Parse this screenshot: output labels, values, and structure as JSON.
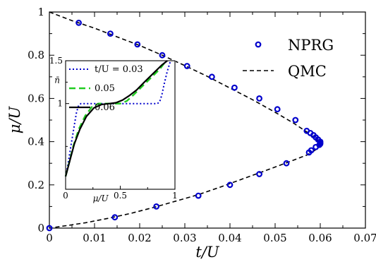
{
  "chart_data": [
    {
      "type": "scatter",
      "xlabel": "t/U",
      "ylabel": "μ/U",
      "xlim": [
        0,
        0.07
      ],
      "ylim": [
        0,
        1
      ],
      "xticks": [
        "0",
        "0.01",
        "0.02",
        "0.03",
        "0.04",
        "0.05",
        "0.06",
        "0.07"
      ],
      "yticks": [
        "0",
        "0.2",
        "0.4",
        "0.6",
        "0.8",
        "1"
      ],
      "legend_position": "top-right",
      "series": [
        {
          "name": "NPRG",
          "kind": "markers",
          "color": "#0000cc",
          "points": [
            [
              0.0,
              0.0
            ],
            [
              0.0065,
              0.95
            ],
            [
              0.0135,
              0.9
            ],
            [
              0.0195,
              0.85
            ],
            [
              0.025,
              0.8
            ],
            [
              0.0305,
              0.75
            ],
            [
              0.036,
              0.7
            ],
            [
              0.041,
              0.65
            ],
            [
              0.0465,
              0.6
            ],
            [
              0.0505,
              0.55
            ],
            [
              0.0545,
              0.5
            ],
            [
              0.057,
              0.45
            ],
            [
              0.0578,
              0.44
            ],
            [
              0.0585,
              0.43
            ],
            [
              0.059,
              0.42
            ],
            [
              0.0595,
              0.41
            ],
            [
              0.06,
              0.4
            ],
            [
              0.06,
              0.395
            ],
            [
              0.06,
              0.39
            ],
            [
              0.0598,
              0.385
            ],
            [
              0.059,
              0.375
            ],
            [
              0.058,
              0.36
            ],
            [
              0.0575,
              0.35
            ],
            [
              0.0525,
              0.3
            ],
            [
              0.0465,
              0.25
            ],
            [
              0.04,
              0.2
            ],
            [
              0.033,
              0.15
            ],
            [
              0.0237,
              0.1
            ],
            [
              0.0145,
              0.05
            ]
          ]
        },
        {
          "name": "QMC",
          "kind": "dashed",
          "color": "#000000",
          "points": [
            [
              0.0,
              1.0
            ],
            [
              0.005,
              0.96
            ],
            [
              0.01,
              0.925
            ],
            [
              0.015,
              0.885
            ],
            [
              0.02,
              0.845
            ],
            [
              0.025,
              0.8
            ],
            [
              0.03,
              0.752
            ],
            [
              0.035,
              0.702
            ],
            [
              0.04,
              0.648
            ],
            [
              0.045,
              0.594
            ],
            [
              0.05,
              0.536
            ],
            [
              0.054,
              0.487
            ],
            [
              0.057,
              0.445
            ],
            [
              0.059,
              0.413
            ],
            [
              0.0598,
              0.395
            ],
            [
              0.0599,
              0.382
            ],
            [
              0.059,
              0.362
            ],
            [
              0.057,
              0.338
            ],
            [
              0.053,
              0.306
            ],
            [
              0.048,
              0.267
            ],
            [
              0.043,
              0.229
            ],
            [
              0.038,
              0.191
            ],
            [
              0.033,
              0.155
            ],
            [
              0.028,
              0.125
            ],
            [
              0.023,
              0.095
            ],
            [
              0.018,
              0.068
            ],
            [
              0.013,
              0.045
            ],
            [
              0.008,
              0.025
            ],
            [
              0.004,
              0.012
            ],
            [
              0.0,
              0.0
            ]
          ]
        }
      ]
    },
    {
      "type": "line",
      "xlabel": "μ/U",
      "ylabel": "n̄",
      "xlim": [
        0,
        1
      ],
      "ylim": [
        0,
        1.5
      ],
      "xticks": [
        "0",
        "0.5",
        "1"
      ],
      "yticks": [
        "1",
        "1.5"
      ],
      "legend_position": "top-left",
      "series": [
        {
          "name": "t/U = 0.03",
          "color": "#0000cc",
          "dash": "dotted",
          "points": [
            [
              0.0,
              0.15
            ],
            [
              0.02,
              0.28
            ],
            [
              0.05,
              0.52
            ],
            [
              0.08,
              0.75
            ],
            [
              0.1,
              0.9
            ],
            [
              0.12,
              0.98
            ],
            [
              0.14,
              1.0
            ],
            [
              0.84,
              1.0
            ],
            [
              0.86,
              1.02
            ],
            [
              0.88,
              1.1
            ],
            [
              0.9,
              1.22
            ],
            [
              0.93,
              1.38
            ],
            [
              0.96,
              1.5
            ]
          ]
        },
        {
          "name": "0.05",
          "color": "#22cc22",
          "dash": "dashed",
          "points": [
            [
              0.0,
              0.15
            ],
            [
              0.03,
              0.3
            ],
            [
              0.07,
              0.5
            ],
            [
              0.12,
              0.7
            ],
            [
              0.18,
              0.86
            ],
            [
              0.24,
              0.96
            ],
            [
              0.3,
              1.0
            ],
            [
              0.5,
              1.0
            ],
            [
              0.56,
              1.03
            ],
            [
              0.62,
              1.1
            ],
            [
              0.7,
              1.2
            ],
            [
              0.78,
              1.3
            ],
            [
              0.86,
              1.4
            ],
            [
              0.92,
              1.5
            ]
          ]
        },
        {
          "name": "0.06",
          "color": "#000000",
          "dash": "solid",
          "points": [
            [
              0.0,
              0.15
            ],
            [
              0.04,
              0.34
            ],
            [
              0.08,
              0.53
            ],
            [
              0.13,
              0.7
            ],
            [
              0.19,
              0.85
            ],
            [
              0.26,
              0.95
            ],
            [
              0.33,
              0.99
            ],
            [
              0.4,
              1.0
            ],
            [
              0.46,
              1.01
            ],
            [
              0.52,
              1.04
            ],
            [
              0.58,
              1.09
            ],
            [
              0.65,
              1.16
            ],
            [
              0.72,
              1.25
            ],
            [
              0.8,
              1.35
            ],
            [
              0.88,
              1.45
            ],
            [
              0.93,
              1.5
            ]
          ]
        }
      ]
    }
  ]
}
